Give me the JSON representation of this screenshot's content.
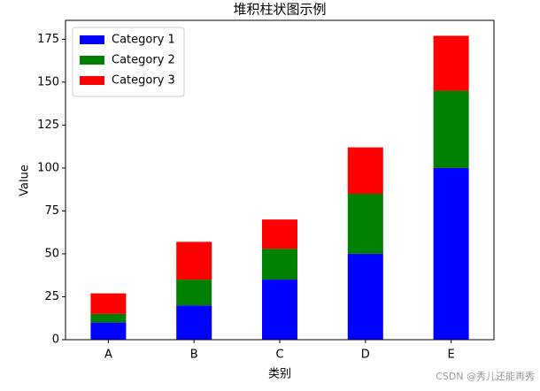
{
  "chart_data": {
    "type": "stacked_bar",
    "title": "堆积柱状图示例",
    "x_label": "类别",
    "y_label": "Value",
    "categories": [
      "A",
      "B",
      "C",
      "D",
      "E"
    ],
    "series": [
      {
        "name": "Category 1",
        "color": "#0000ff",
        "values": [
          10,
          20,
          35,
          50,
          100
        ]
      },
      {
        "name": "Category 2",
        "color": "#008000",
        "values": [
          5,
          15,
          18,
          35,
          45
        ]
      },
      {
        "name": "Category 3",
        "color": "#ff0000",
        "values": [
          12,
          22,
          17,
          27,
          32
        ]
      }
    ],
    "ylim": [
      0,
      186
    ],
    "yticks": [
      0,
      25,
      50,
      75,
      100,
      125,
      150,
      175
    ],
    "legend": "upper left",
    "watermark": "CSDN @秀儿还能再秀"
  }
}
